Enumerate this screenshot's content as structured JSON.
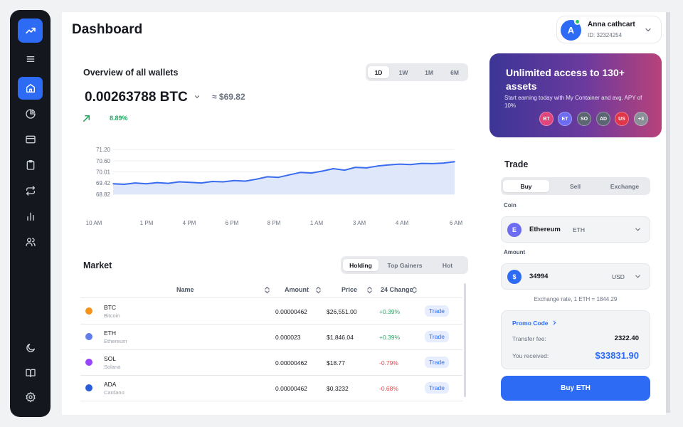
{
  "page": {
    "title": "Dashboard"
  },
  "sidebar": {
    "logo_icon": "trending-up-icon",
    "items": [
      {
        "icon": "menu-icon",
        "active": false
      },
      {
        "icon": "home-icon",
        "active": true
      },
      {
        "icon": "pie-chart-icon",
        "active": false
      },
      {
        "icon": "credit-card-icon",
        "active": false
      },
      {
        "icon": "clipboard-icon",
        "active": false
      },
      {
        "icon": "repeat-icon",
        "active": false
      },
      {
        "icon": "bar-chart-icon",
        "active": false
      },
      {
        "icon": "users-icon",
        "active": false
      },
      {
        "icon": "moon-icon",
        "active": false
      },
      {
        "icon": "book-icon",
        "active": false
      },
      {
        "icon": "settings-icon",
        "active": false
      }
    ]
  },
  "user": {
    "initial": "A",
    "name": "Anna cathcart",
    "id": "ID: 32324254"
  },
  "overview": {
    "title": "Overview of all wallets",
    "ranges": [
      "1D",
      "1W",
      "1M",
      "6M"
    ],
    "selected_range": "1D",
    "btc_value": "0.00263788 BTC",
    "usd_value": "≈ $69.82",
    "change": "8.89%"
  },
  "chart_data": {
    "type": "area",
    "y_ticks": [
      "71.20",
      "70.60",
      "70.01",
      "69.42",
      "68.82"
    ],
    "y_tick_values": [
      71.2,
      70.6,
      70.01,
      69.42,
      68.82
    ],
    "ylim": [
      68.82,
      71.2
    ],
    "x_ticks": [
      "10 AM",
      "1 PM",
      "4 PM",
      "6 PM",
      "8 PM",
      "1 AM",
      "3 AM",
      "4 AM",
      "6 AM"
    ],
    "values": [
      69.38,
      69.35,
      69.42,
      69.38,
      69.44,
      69.4,
      69.48,
      69.45,
      69.42,
      69.5,
      69.48,
      69.55,
      69.52,
      69.62,
      69.75,
      69.72,
      69.85,
      69.98,
      69.95,
      70.05,
      70.18,
      70.1,
      70.25,
      70.22,
      70.32,
      70.38,
      70.42,
      70.4,
      70.46,
      70.45,
      70.48,
      70.55
    ]
  },
  "market": {
    "title": "Market",
    "tabs": [
      "Holding",
      "Top Gainers",
      "Hot"
    ],
    "selected_tab": "Holding",
    "columns": [
      "Name",
      "Amount",
      "Price",
      "24 Change"
    ],
    "rows": [
      {
        "symbol": "BTC",
        "name": "Bitcoin",
        "amount": "0.00000462",
        "price": "$26,551.00",
        "change": "+0.39%",
        "color": "#f7931a",
        "up": true,
        "action": "Trade"
      },
      {
        "symbol": "ETH",
        "name": "Ethereum",
        "amount": "0.000023",
        "price": "$1,846.04",
        "change": "+0.39%",
        "color": "#627eea",
        "up": true,
        "action": "Trade"
      },
      {
        "symbol": "SOL",
        "name": "Solana",
        "amount": "0.00000462",
        "price": "$18.77",
        "change": "-0.79%",
        "color": "#9945ff",
        "up": false,
        "action": "Trade"
      },
      {
        "symbol": "ADA",
        "name": "Cardano",
        "amount": "0.00000462",
        "price": "$0.3232",
        "change": "-0.68%",
        "color": "#2a5ed8",
        "up": false,
        "action": "Trade"
      }
    ]
  },
  "promo": {
    "title": "Unlimited access to 130+ assets",
    "subtitle": "Start earning today with My Container and avg. APY of 10%",
    "assets": [
      {
        "label": "BT",
        "color": "#e0457b"
      },
      {
        "label": "ET",
        "color": "#6b6cf2"
      },
      {
        "label": "SO",
        "color": "#5c6670"
      },
      {
        "label": "AD",
        "color": "#5a6472"
      },
      {
        "label": "US",
        "color": "#e0364a"
      },
      {
        "label": "+3",
        "color": "#8b8f98"
      }
    ]
  },
  "trade": {
    "title": "Trade",
    "modes": [
      "Buy",
      "Sell",
      "Exchange"
    ],
    "selected_mode": "Buy",
    "coin_label": "Coin",
    "coin": {
      "icon_letter": "E",
      "name": "Ethereum",
      "unit": "ETH",
      "color": "#6b6cf2"
    },
    "amount_label": "Amount",
    "amount": {
      "icon_letter": "$",
      "value": "34994",
      "unit": "USD",
      "color": "#2d6bf5"
    },
    "rate": "Exchange rate, 1 ETH = 1844.29",
    "promo_code": "Promo Code",
    "transfer_fee_label": "Transfer fee:",
    "transfer_fee": "2322.40",
    "received_label": "You received:",
    "received": "$33831.90",
    "buy_label": "Buy ETH"
  },
  "colors": {
    "accent": "#2d6bf5",
    "sidebar": "#15171f",
    "positive": "#22a861",
    "negative": "#e5484d"
  }
}
